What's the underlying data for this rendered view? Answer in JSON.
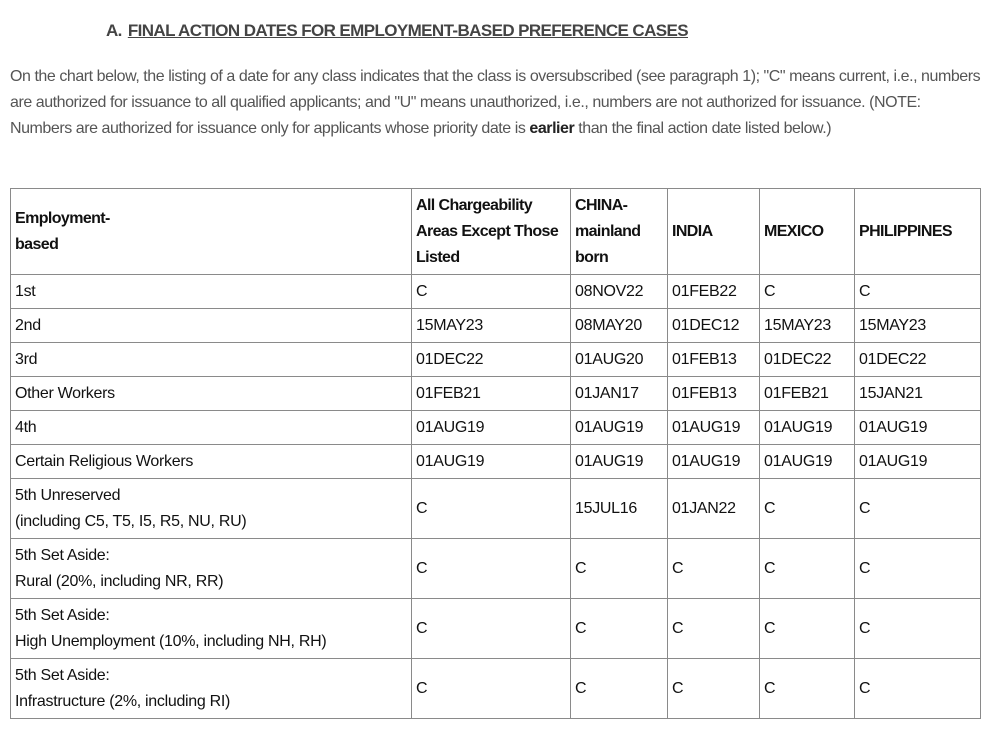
{
  "heading": {
    "letter": "A.",
    "title": "FINAL ACTION DATES FOR EMPLOYMENT-BASED PREFERENCE CASES"
  },
  "intro": {
    "before_bold": "On the chart below, the listing of a date for any class indicates that the class is oversubscribed (see paragraph 1); \"C\" means current, i.e., numbers are authorized for issuance to all qualified applicants; and \"U\" means unauthorized, i.e., numbers are not authorized for issuance. (NOTE: Numbers are authorized for issuance only for applicants whose priority date is ",
    "bold": "earlier",
    "after_bold": " than the final action date listed below.)"
  },
  "table": {
    "headers": [
      "Employment-\nbased",
      "All Chargeability Areas Except Those Listed",
      "CHINA-\nmainland born",
      "INDIA",
      "MEXICO",
      "PHILIPPINES"
    ],
    "rows": [
      {
        "category": [
          "1st"
        ],
        "values": [
          "C",
          "08NOV22",
          "01FEB22",
          "C",
          "C"
        ]
      },
      {
        "category": [
          "2nd"
        ],
        "values": [
          "15MAY23",
          "08MAY20",
          "01DEC12",
          "15MAY23",
          "15MAY23"
        ]
      },
      {
        "category": [
          "3rd"
        ],
        "values": [
          "01DEC22",
          "01AUG20",
          "01FEB13",
          "01DEC22",
          "01DEC22"
        ]
      },
      {
        "category": [
          "Other Workers"
        ],
        "values": [
          "01FEB21",
          "01JAN17",
          "01FEB13",
          "01FEB21",
          "15JAN21"
        ]
      },
      {
        "category": [
          "4th"
        ],
        "values": [
          "01AUG19",
          "01AUG19",
          "01AUG19",
          "01AUG19",
          "01AUG19"
        ]
      },
      {
        "category": [
          "Certain Religious Workers"
        ],
        "values": [
          "01AUG19",
          "01AUG19",
          "01AUG19",
          "01AUG19",
          "01AUG19"
        ]
      },
      {
        "category": [
          "5th Unreserved",
          "(including C5, T5, I5, R5, NU, RU)"
        ],
        "values": [
          "C",
          "15JUL16",
          "01JAN22",
          "C",
          "C"
        ]
      },
      {
        "category": [
          "5th Set Aside:",
          "Rural (20%, including NR, RR)"
        ],
        "values": [
          "C",
          "C",
          "C",
          "C",
          "C"
        ]
      },
      {
        "category": [
          "5th Set Aside:",
          "High Unemployment (10%, including NH, RH)"
        ],
        "values": [
          "C",
          "C",
          "C",
          "C",
          "C"
        ]
      },
      {
        "category": [
          "5th Set Aside:",
          "Infrastructure (2%, including RI)"
        ],
        "values": [
          "C",
          "C",
          "C",
          "C",
          "C"
        ]
      }
    ]
  }
}
